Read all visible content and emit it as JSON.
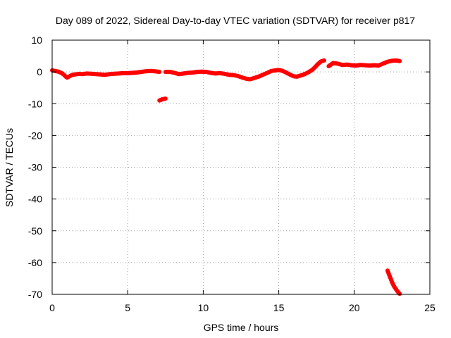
{
  "chart_data": {
    "type": "scatter",
    "title": "Day 089 of 2022, Sidereal Day-to-day VTEC variation (SDTVAR) for receiver p817",
    "xlabel": "GPS time / hours",
    "ylabel": "SDTVAR / TECUs",
    "xlim": [
      0,
      25
    ],
    "ylim": [
      -70,
      10
    ],
    "xticks": [
      0,
      5,
      10,
      15,
      20,
      25
    ],
    "yticks": [
      10,
      0,
      -10,
      -20,
      -30,
      -40,
      -50,
      -60,
      -70
    ],
    "grid": true,
    "series": [
      {
        "name": "SDTVAR",
        "color": "#ff0000",
        "segments": [
          {
            "x": [
              0.0,
              0.2,
              0.4,
              0.6,
              0.8,
              0.9,
              1.0,
              1.1,
              1.3,
              1.5,
              1.8,
              2.0,
              2.3,
              2.6,
              2.9,
              3.2,
              3.5,
              3.8,
              4.1,
              4.4,
              4.7,
              5.0,
              5.3,
              5.6,
              5.9,
              6.2,
              6.5,
              6.8,
              7.1
            ],
            "y": [
              0.5,
              0.3,
              0.1,
              -0.3,
              -1.0,
              -1.5,
              -1.8,
              -1.5,
              -1.0,
              -0.8,
              -0.6,
              -0.7,
              -0.5,
              -0.6,
              -0.7,
              -0.8,
              -0.9,
              -0.7,
              -0.6,
              -0.5,
              -0.4,
              -0.4,
              -0.3,
              -0.2,
              0.0,
              0.2,
              0.3,
              0.2,
              0.0
            ]
          },
          {
            "x": [
              7.1,
              7.2,
              7.3,
              7.4,
              7.5
            ],
            "y": [
              -9.0,
              -8.8,
              -8.6,
              -8.5,
              -8.4
            ]
          },
          {
            "x": [
              7.5,
              7.8,
              8.1,
              8.4,
              8.7,
              9.0,
              9.3,
              9.6,
              9.9,
              10.2,
              10.5,
              10.8,
              11.1,
              11.4,
              11.7,
              12.0,
              12.3,
              12.6,
              12.9,
              13.1,
              13.3,
              13.6,
              13.9,
              14.2,
              14.5,
              14.8,
              15.0,
              15.2,
              15.4,
              15.6,
              15.8,
              16.0,
              16.2,
              16.4,
              16.6,
              16.8,
              17.0,
              17.2,
              17.4,
              17.6,
              17.8,
              18.0
            ],
            "y": [
              0.0,
              0.0,
              -0.3,
              -0.7,
              -0.5,
              -0.3,
              -0.2,
              0.0,
              0.1,
              0.0,
              -0.3,
              -0.5,
              -0.4,
              -0.6,
              -0.9,
              -1.0,
              -1.3,
              -1.8,
              -2.2,
              -2.3,
              -2.0,
              -1.6,
              -1.0,
              -0.4,
              0.3,
              0.5,
              0.6,
              0.4,
              0.0,
              -0.5,
              -1.0,
              -1.4,
              -1.5,
              -1.2,
              -0.9,
              -0.5,
              0.0,
              0.6,
              1.5,
              2.5,
              3.3,
              3.6
            ]
          },
          {
            "x": [
              18.3,
              18.6,
              18.9,
              19.2,
              19.5,
              19.8,
              20.1,
              20.4,
              20.7,
              21.0,
              21.3,
              21.6,
              21.9,
              22.2,
              22.5,
              22.8,
              23.0
            ],
            "y": [
              1.8,
              2.8,
              2.6,
              2.2,
              2.3,
              2.1,
              2.0,
              2.2,
              2.1,
              2.0,
              2.1,
              2.0,
              2.6,
              3.2,
              3.5,
              3.6,
              3.4
            ]
          },
          {
            "x": [
              22.2,
              22.3,
              22.4,
              22.5,
              22.6,
              22.7,
              22.8,
              22.9,
              23.0
            ],
            "y": [
              -62.5,
              -63.8,
              -65.0,
              -66.2,
              -67.2,
              -68.0,
              -68.7,
              -69.3,
              -69.8
            ]
          }
        ]
      }
    ]
  }
}
